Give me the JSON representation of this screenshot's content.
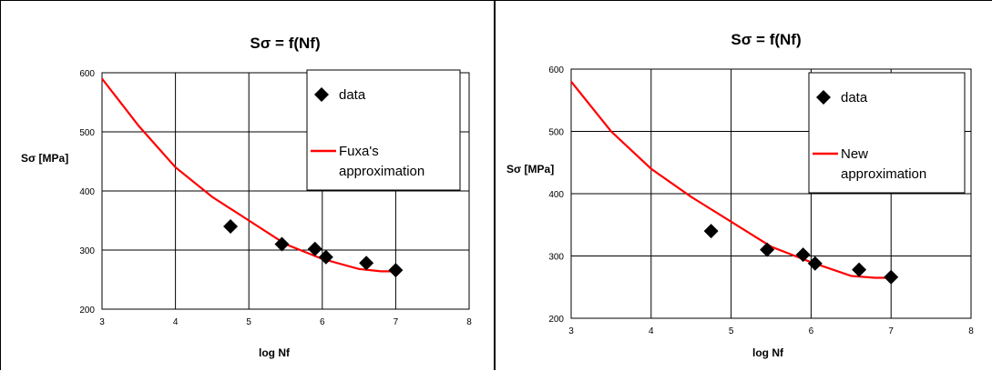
{
  "chart_data": [
    {
      "type": "scatter",
      "title": "Sσ = f(Nf)",
      "xlabel": "log Nf",
      "ylabel": "Sσ [MPa]",
      "xlim": [
        3,
        8
      ],
      "ylim": [
        200,
        600
      ],
      "xticks": [
        "3",
        "4",
        "5",
        "6",
        "7",
        "8"
      ],
      "yticks": [
        "200",
        "300",
        "400",
        "500",
        "600"
      ],
      "grid": true,
      "legend": "top-right",
      "colors": {
        "data": "#000000",
        "approximation": "#ff0000"
      },
      "series": [
        {
          "name": "data",
          "type": "scatter",
          "marker": "diamond",
          "x": [
            4.75,
            5.45,
            5.9,
            6.05,
            6.6,
            7.0
          ],
          "y": [
            340,
            310,
            302,
            288,
            278,
            266
          ]
        },
        {
          "name": "Fuxa's approximation",
          "type": "line",
          "x": [
            3.0,
            3.5,
            4.0,
            4.5,
            5.0,
            5.5,
            6.0,
            6.5,
            6.8,
            7.0
          ],
          "y": [
            590,
            510,
            440,
            390,
            350,
            310,
            285,
            268,
            264,
            264
          ]
        }
      ]
    },
    {
      "type": "scatter",
      "title": "Sσ = f(Nf)",
      "xlabel": "log Nf",
      "ylabel": "Sσ [MPa]",
      "xlim": [
        3,
        8
      ],
      "ylim": [
        200,
        600
      ],
      "xticks": [
        "3",
        "4",
        "5",
        "6",
        "7",
        "8"
      ],
      "yticks": [
        "200",
        "300",
        "400",
        "500",
        "600"
      ],
      "grid": true,
      "legend": "top-right",
      "colors": {
        "data": "#000000",
        "approximation": "#ff0000"
      },
      "series": [
        {
          "name": "data",
          "type": "scatter",
          "marker": "diamond",
          "x": [
            4.75,
            5.45,
            5.9,
            6.05,
            6.6,
            7.0
          ],
          "y": [
            340,
            310,
            302,
            288,
            278,
            266
          ]
        },
        {
          "name": "New approximation",
          "type": "line",
          "x": [
            3.0,
            3.5,
            4.0,
            4.5,
            5.0,
            5.5,
            6.0,
            6.5,
            6.8,
            7.0
          ],
          "y": [
            580,
            500,
            440,
            395,
            355,
            315,
            290,
            268,
            265,
            265
          ]
        }
      ]
    }
  ]
}
